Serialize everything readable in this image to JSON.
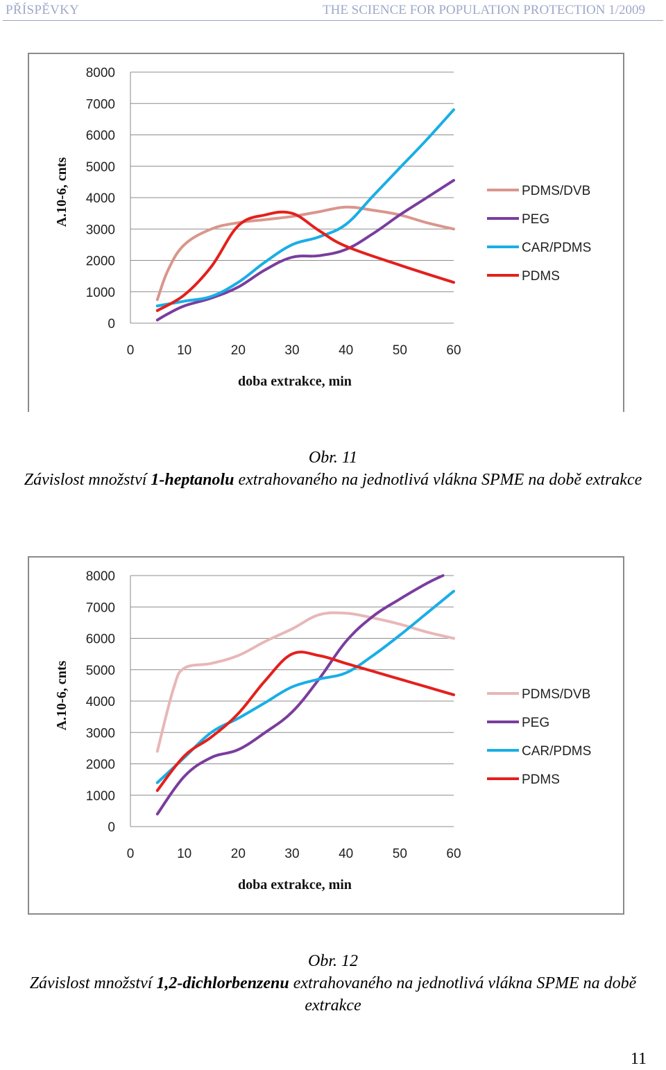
{
  "header": {
    "left": "PŘÍSPĚVKY",
    "right": "THE SCIENCE FOR POPULATION PROTECTION 1/2009"
  },
  "figures": [
    {
      "caption_num": "Obr. 11",
      "caption_pre": "Závislost množství ",
      "caption_bold": "1-heptanolu",
      "caption_post": " extrahovaného na jednotlivá vlákna SPME na době extrakce"
    },
    {
      "caption_num": "Obr. 12",
      "caption_pre": "Závislost množství ",
      "caption_bold": "1,2-dichlorbenzenu",
      "caption_post": " extrahovaného na jednotlivá vlákna SPME na době extrakce"
    }
  ],
  "page_number": "11",
  "chart_data": [
    {
      "type": "line",
      "xlabel": "doba extrakce, min",
      "ylabel": "A.10-6, cnts",
      "xlim": [
        0,
        60
      ],
      "ylim": [
        0,
        8000
      ],
      "xticks": [
        "0",
        "10",
        "20",
        "30",
        "40",
        "50",
        "60"
      ],
      "yticks": [
        "0",
        "1000",
        "2000",
        "3000",
        "4000",
        "5000",
        "6000",
        "7000",
        "8000"
      ],
      "grid": "horizontal",
      "legend": "right",
      "series": [
        {
          "name": "PDMS/DVB",
          "color": "#d9968c",
          "x": [
            5,
            7,
            10,
            15,
            20,
            25,
            30,
            35,
            40,
            45,
            50,
            55,
            60
          ],
          "y": [
            750,
            1700,
            2500,
            3000,
            3200,
            3300,
            3400,
            3550,
            3700,
            3600,
            3450,
            3200,
            3000
          ]
        },
        {
          "name": "PEG",
          "color": "#7a3d9e",
          "x": [
            5,
            7,
            10,
            15,
            20,
            25,
            30,
            35,
            40,
            45,
            50,
            55,
            60
          ],
          "y": [
            100,
            300,
            550,
            800,
            1150,
            1700,
            2100,
            2150,
            2350,
            2850,
            3450,
            4000,
            4550
          ]
        },
        {
          "name": "CAR/PDMS",
          "color": "#1aaee5",
          "x": [
            5,
            10,
            15,
            20,
            25,
            30,
            35,
            40,
            45,
            50,
            55,
            60
          ],
          "y": [
            550,
            700,
            850,
            1300,
            1950,
            2500,
            2750,
            3150,
            4050,
            4950,
            5850,
            6800
          ]
        },
        {
          "name": "PDMS",
          "color": "#e3201c",
          "x": [
            5,
            10,
            15,
            20,
            25,
            30,
            35,
            40,
            50,
            60
          ],
          "y": [
            400,
            900,
            1800,
            3100,
            3450,
            3500,
            2950,
            2450,
            1850,
            1300
          ]
        }
      ]
    },
    {
      "type": "line",
      "xlabel": "doba extrakce, min",
      "ylabel": "A.10-6, cnts",
      "xlim": [
        0,
        60
      ],
      "ylim": [
        0,
        8000
      ],
      "xticks": [
        "0",
        "10",
        "20",
        "30",
        "40",
        "50",
        "60"
      ],
      "yticks": [
        "0",
        "1000",
        "2000",
        "3000",
        "4000",
        "5000",
        "6000",
        "7000",
        "8000"
      ],
      "grid": "horizontal",
      "legend": "right",
      "series": [
        {
          "name": "PDMS/DVB",
          "color": "#e8b7b7",
          "x": [
            5,
            8,
            10,
            15,
            20,
            25,
            30,
            35,
            40,
            45,
            50,
            55,
            60
          ],
          "y": [
            2400,
            4400,
            5050,
            5200,
            5450,
            5900,
            6300,
            6750,
            6800,
            6650,
            6450,
            6200,
            6000
          ]
        },
        {
          "name": "PEG",
          "color": "#7a3d9e",
          "x": [
            5,
            10,
            15,
            20,
            25,
            30,
            35,
            40,
            45,
            50,
            55,
            58
          ],
          "y": [
            400,
            1600,
            2200,
            2450,
            3000,
            3650,
            4700,
            5900,
            6700,
            7250,
            7750,
            8000
          ]
        },
        {
          "name": "CAR/PDMS",
          "color": "#1aaee5",
          "x": [
            5,
            10,
            15,
            20,
            25,
            30,
            35,
            40,
            45,
            50,
            55,
            60
          ],
          "y": [
            1400,
            2200,
            3000,
            3450,
            3950,
            4450,
            4700,
            4900,
            5450,
            6100,
            6800,
            7500
          ]
        },
        {
          "name": "PDMS",
          "color": "#e3201c",
          "x": [
            5,
            10,
            15,
            20,
            25,
            30,
            35,
            40,
            45,
            50,
            55,
            60
          ],
          "y": [
            1150,
            2250,
            2850,
            3600,
            4650,
            5500,
            5450,
            5200,
            4950,
            4700,
            4450,
            4200
          ]
        }
      ]
    }
  ]
}
